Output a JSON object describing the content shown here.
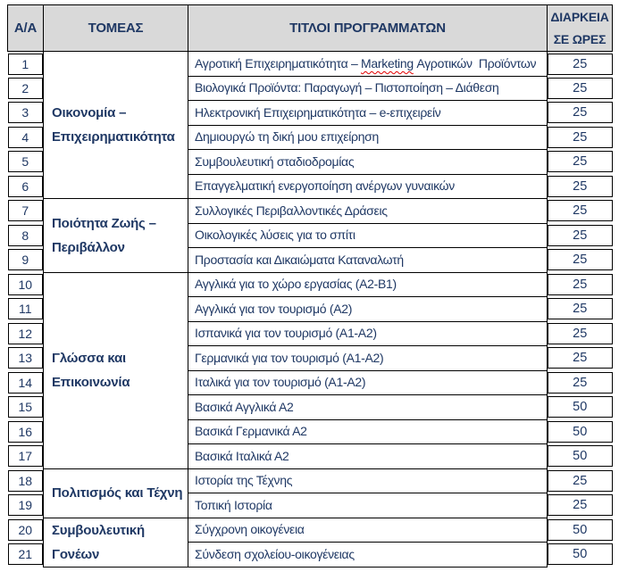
{
  "colors": {
    "text": "#1F3864",
    "border": "#000000",
    "header_bg": "#D9D9D9",
    "squiggle": "#e10000"
  },
  "table": {
    "headers": {
      "num": "Α/Α",
      "sector": "ΤΟΜΕΑΣ",
      "titles": "ΤΙΤΛΟΙ ΠΡΟΓΡΑΜΜΑΤΩΝ",
      "duration_line1": "ΔΙΑΡΚΕΙΑ",
      "duration_line2": "ΣΕ ΩΡΕΣ"
    },
    "sectors": [
      {
        "name": "Οικονομία – Επιχειρηματικότητα",
        "lines": [
          "Οικονομία –",
          "Επιχειρηματικότητα"
        ],
        "programs": [
          {
            "num": "1",
            "title": "Αγροτική Επιχειρηματικότητα – Marketing Αγροτικών  Προϊόντων",
            "misspelled_word": "Marketing",
            "hours": "25"
          },
          {
            "num": "2",
            "title": "Βιολογικά Προϊόντα: Παραγωγή – Πιστοποίηση – Διάθεση",
            "hours": "25"
          },
          {
            "num": "3",
            "title": "Ηλεκτρονική Επιχειρηματικότητα – e-επιχειρείν",
            "hours": "25"
          },
          {
            "num": "4",
            "title": "Δημιουργώ τη δική μου επιχείρηση",
            "hours": "25"
          },
          {
            "num": "5",
            "title": "Συμβουλευτική σταδιοδρομίας",
            "hours": "25"
          },
          {
            "num": "6",
            "title": "Επαγγελματική ενεργοποίηση ανέργων γυναικών",
            "hours": "25"
          }
        ]
      },
      {
        "name": "Ποιότητα Ζωής – Περιβάλλον",
        "lines": [
          "Ποιότητα Ζωής –",
          "Περιβάλλον"
        ],
        "programs": [
          {
            "num": "7",
            "title": "Συλλογικές Περιβαλλοντικές Δράσεις",
            "hours": "25"
          },
          {
            "num": "8",
            "title": "Οικολογικές λύσεις για το σπίτι",
            "hours": "25"
          },
          {
            "num": "9",
            "title": "Προστασία και Δικαιώματα Καταναλωτή",
            "hours": "25"
          }
        ]
      },
      {
        "name": "Γλώσσα και Επικοινωνία",
        "lines": [
          "Γλώσσα και",
          "Επικοινωνία"
        ],
        "programs": [
          {
            "num": "10",
            "title": "Αγγλικά για το χώρο εργασίας (Α2-Β1)",
            "hours": "25"
          },
          {
            "num": "11",
            "title": "Αγγλικά για τον τουρισμό (Α2)",
            "hours": "25"
          },
          {
            "num": "12",
            "title": "Ισπανικά για τον τουρισμό (Α1-Α2)",
            "hours": "25"
          },
          {
            "num": "13",
            "title": "Γερμανικά για τον τουρισμό (Α1-Α2)",
            "hours": "25"
          },
          {
            "num": "14",
            "title": "Ιταλικά για τον τουρισμό (Α1-Α2)",
            "hours": "25"
          },
          {
            "num": "15",
            "title": "Βασικά Αγγλικά Α2",
            "hours": "50"
          },
          {
            "num": "16",
            "title": "Βασικά Γερμανικά Α2",
            "hours": "50"
          },
          {
            "num": "17",
            "title": "Βασικά Ιταλικά Α2",
            "hours": "50"
          }
        ]
      },
      {
        "name": "Πολιτισμός και Τέχνη",
        "lines": [
          "Πολιτισμός και Τέχνη"
        ],
        "programs": [
          {
            "num": "18",
            "title": "Ιστορία της Τέχνης",
            "hours": "25"
          },
          {
            "num": "19",
            "title": "Τοπική Ιστορία",
            "hours": "25"
          }
        ]
      },
      {
        "name": "Συμβουλευτική Γονέων",
        "lines": [
          "Συμβουλευτική Γονέων"
        ],
        "programs": [
          {
            "num": "20",
            "title": "Σύγχρονη οικογένεια",
            "hours": "50"
          },
          {
            "num": "21",
            "title": "Σύνδεση σχολείου-οικογένειας",
            "hours": "50"
          }
        ]
      }
    ]
  }
}
